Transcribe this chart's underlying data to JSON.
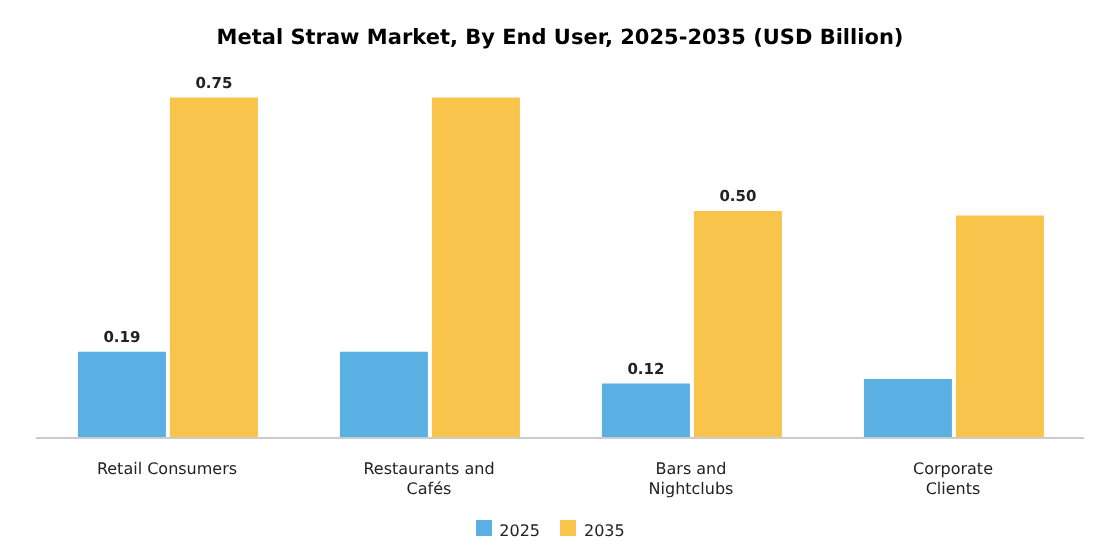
{
  "chart_data": {
    "type": "bar",
    "title": "Metal Straw Market, By End User, 2025-2035 (USD Billion)",
    "categories": [
      "Retail Consumers",
      "Restaurants and Cafés",
      "Bars and Nightclubs",
      "Corporate Clients"
    ],
    "series": [
      {
        "name": "2025",
        "color": "#5aafe3",
        "values": [
          0.19,
          0.19,
          0.12,
          0.13
        ],
        "value_labels": [
          "0.19",
          null,
          "0.12",
          null
        ]
      },
      {
        "name": "2035",
        "color": "#f8c44c",
        "values": [
          0.75,
          0.75,
          0.5,
          0.49
        ],
        "value_labels": [
          "0.75",
          null,
          "0.50",
          null
        ]
      }
    ],
    "legend": "bottom",
    "grid": false
  }
}
